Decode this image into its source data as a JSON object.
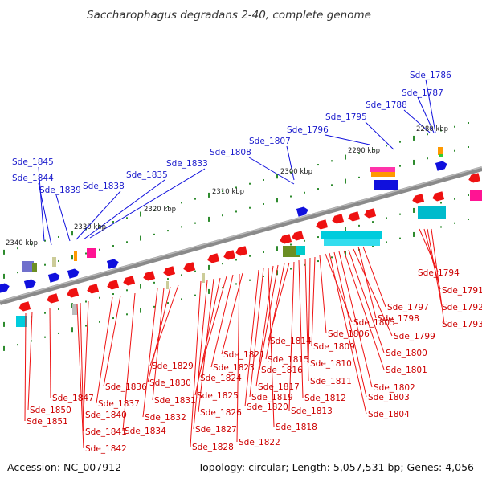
{
  "title": "Saccharophagus degradans 2-40, complete genome",
  "footer": {
    "accession": "Accession: NC_007912",
    "summary": "Topology: circular; Length: 5,057,531 bp; Genes: 4,056"
  },
  "colors": {
    "backbone": "#8a8a8a",
    "forward_gene": "#1010dd",
    "reverse_gene": "#ee1111",
    "forward_label": "#1a1acc",
    "reverse_label": "#cc0000",
    "tick": "#2e8b2e"
  },
  "scale_labels": [
    "2280 kbp",
    "2290 kbp",
    "2300 kbp",
    "2310 kbp",
    "2320 kbp",
    "2330 kbp",
    "2340 kbp"
  ],
  "forward_labels": [
    "Sde_1786",
    "Sde_1787",
    "Sde_1788",
    "Sde_1795",
    "Sde_1796",
    "Sde_1807",
    "Sde_1808",
    "Sde_1833",
    "Sde_1835",
    "Sde_1838",
    "Sde_1839",
    "Sde_1844",
    "Sde_1845"
  ],
  "reverse_labels": [
    "Sde_1791",
    "Sde_1792",
    "Sde_1793",
    "Sde_1794",
    "Sde_1797",
    "Sde_1798",
    "Sde_1799",
    "Sde_1800",
    "Sde_1801",
    "Sde_1802",
    "Sde_1803",
    "Sde_1804",
    "Sde_1805",
    "Sde_1806",
    "Sde_1809",
    "Sde_1810",
    "Sde_1811",
    "Sde_1812",
    "Sde_1813",
    "Sde_1814",
    "Sde_1815",
    "Sde_1816",
    "Sde_1817",
    "Sde_1818",
    "Sde_1819",
    "Sde_1820",
    "Sde_1821",
    "Sde_1822",
    "Sde_1823",
    "Sde_1824",
    "Sde_1825",
    "Sde_1826",
    "Sde_1827",
    "Sde_1828",
    "Sde_1829",
    "Sde_1830",
    "Sde_1831",
    "Sde_1832",
    "Sde_1834",
    "Sde_1836",
    "Sde_1837",
    "Sde_1840",
    "Sde_1841",
    "Sde_1842",
    "Sde_1847",
    "Sde_1850",
    "Sde_1851"
  ]
}
